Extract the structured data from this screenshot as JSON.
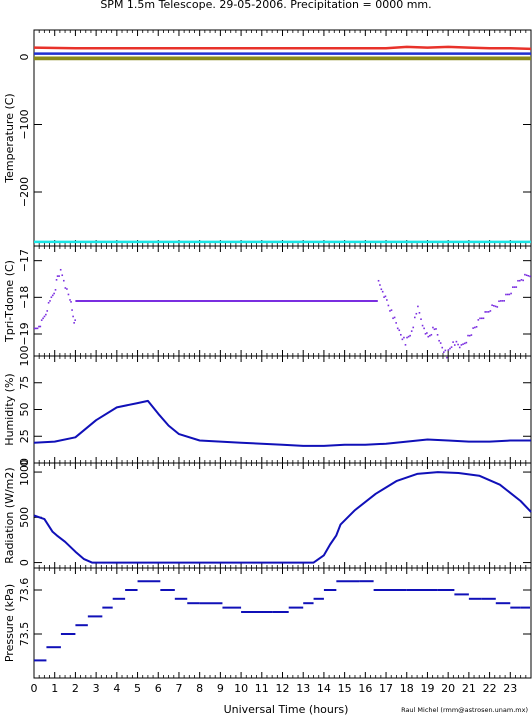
{
  "title": "SPM 1.5m Telescope. 29-05-2006. Precipitation = 0000",
  "title_suffix": " mm.",
  "credit": "Raul Michel (rmm@astrosen.unam.mx)",
  "colors": {
    "red": "#e8322a",
    "blue": "#1f2fd0",
    "olive": "#8a8a1a",
    "cyan": "#19e6e6",
    "purple": "#7a2ee0",
    "navy": "#1010b8"
  },
  "chart_data": {
    "type": "line",
    "xlabel": "Universal Time (hours)",
    "xlim": [
      0,
      24
    ],
    "xticks": [
      "0",
      "1",
      "2",
      "3",
      "4",
      "5",
      "6",
      "7",
      "8",
      "9",
      "10",
      "11",
      "12",
      "13",
      "14",
      "15",
      "16",
      "17",
      "18",
      "19",
      "20",
      "21",
      "22",
      "23"
    ],
    "panels": [
      {
        "id": "temperature",
        "ylabel": "Temperature (C)",
        "ylim": [
          -280,
          40
        ],
        "ytick_values": [
          0,
          -100,
          -200
        ],
        "ytick_labels": [
          "0",
          "−100",
          "−200"
        ],
        "series": [
          {
            "color": "red",
            "x": [
              0,
              2,
              6,
              10,
              14,
              16,
              17,
              18,
              19,
              20,
              21,
              22,
              23,
              24
            ],
            "y": [
              14,
              13,
              13,
              13,
              13,
              13,
              13,
              15,
              14,
              15,
              14,
              13,
              13,
              12
            ]
          },
          {
            "color": "blue",
            "x": [
              0,
              24
            ],
            "y": [
              5,
              5
            ]
          },
          {
            "color": "olive",
            "x": [
              0,
              24
            ],
            "y": [
              -1,
              -1
            ]
          },
          {
            "color": "olive",
            "x": [
              0,
              24
            ],
            "y": [
              -3,
              -3
            ]
          },
          {
            "color": "cyan",
            "x": [
              0,
              24
            ],
            "y": [
              -274,
              -274
            ]
          }
        ]
      },
      {
        "id": "tpri",
        "ylabel": "Tpri-Tdome (C)",
        "ylim": [
          -19.6,
          -16.6
        ],
        "ytick_values": [
          -17,
          -18,
          -19
        ],
        "ytick_labels": [
          "−17",
          "−18",
          "−19"
        ],
        "series": [
          {
            "color": "purple",
            "style": "points",
            "x": [
              0.0,
              0.2,
              0.4,
              0.6,
              0.8,
              1.0,
              1.1,
              1.25,
              1.4,
              1.55,
              1.7,
              1.8,
              1.9,
              2.0
            ],
            "y": [
              -18.9,
              -18.75,
              -18.6,
              -18.3,
              -18.0,
              -17.7,
              -17.4,
              -17.3,
              -17.5,
              -17.8,
              -18.0,
              -18.35,
              -18.6,
              -18.7
            ]
          },
          {
            "color": "purple",
            "style": "line",
            "x": [
              2.0,
              16.6
            ],
            "y": [
              -18.1,
              -18.1
            ]
          },
          {
            "color": "purple",
            "style": "points",
            "x": [
              16.6,
              16.8,
              17.0,
              17.3,
              17.6,
              17.9,
              18.2,
              18.5,
              18.8,
              19.0,
              19.3,
              19.6,
              19.9,
              20.2,
              20.6,
              21.0,
              21.5,
              22.0,
              22.5,
              23.0,
              23.5,
              24.0
            ],
            "y": [
              -17.6,
              -17.8,
              -18.1,
              -18.5,
              -18.9,
              -19.2,
              -18.9,
              -18.3,
              -18.8,
              -19.1,
              -18.8,
              -19.25,
              -19.55,
              -19.2,
              -19.35,
              -19.0,
              -18.6,
              -18.3,
              -18.1,
              -17.8,
              -17.5,
              -17.3
            ]
          }
        ]
      },
      {
        "id": "humidity",
        "ylabel": "Humidity (%)",
        "ylim": [
          0,
          100
        ],
        "ytick_values": [
          100,
          75,
          50,
          25,
          0
        ],
        "ytick_labels": [
          "100",
          "75",
          "50",
          "25",
          "0"
        ],
        "series": [
          {
            "color": "navy",
            "x": [
              0,
              1,
              2,
              3,
              4,
              5,
              5.5,
              6,
              6.5,
              7,
              8,
              9,
              10,
              11,
              12,
              13,
              14,
              15,
              16,
              17,
              18,
              19,
              20,
              21,
              22,
              23,
              24
            ],
            "y": [
              19,
              20,
              24,
              40,
              52,
              56,
              58,
              46,
              35,
              27,
              21,
              20,
              19,
              18,
              17,
              16,
              16,
              17,
              17,
              18,
              20,
              22,
              21,
              20,
              20,
              21,
              21
            ]
          }
        ]
      },
      {
        "id": "radiation",
        "ylabel": "Radiation (W/m2)",
        "ylim": [
          -60,
          1100
        ],
        "ytick_values": [
          0,
          500,
          1000
        ],
        "ytick_labels": [
          "0",
          "500",
          "1000"
        ],
        "series": [
          {
            "color": "navy",
            "x": [
              0,
              0.5,
              0.9,
              1.1,
              1.5,
              2.0,
              2.4,
              2.8,
              4,
              8,
              12,
              13.5,
              14.0,
              14.3,
              14.6,
              14.8,
              15.5,
              16.5,
              17.5,
              18.5,
              19.5,
              20.5,
              21.5,
              22.5,
              23.5,
              24.0
            ],
            "y": [
              520,
              480,
              340,
              300,
              230,
              120,
              40,
              0,
              0,
              0,
              0,
              0,
              80,
              200,
              300,
              420,
              580,
              760,
              900,
              980,
              1000,
              990,
              960,
              860,
              680,
              560
            ]
          }
        ]
      },
      {
        "id": "pressure",
        "ylabel": "Pressure (kPa)",
        "ylim": [
          73.4,
          73.65
        ],
        "ytick_values": [
          73.6,
          73.5
        ],
        "ytick_labels": [
          "73.6",
          "73.5"
        ],
        "series": [
          {
            "color": "navy",
            "style": "steps",
            "x": [
              0.0,
              0.6,
              1.3,
              2.0,
              2.6,
              3.3,
              3.8,
              4.4,
              5.0,
              6.1,
              6.8,
              7.4,
              8.0,
              9.1,
              10.0,
              11.5,
              12.3,
              13.0,
              13.5,
              14.0,
              14.6,
              15.7,
              16.4,
              18.0,
              19.5,
              20.3,
              21.0,
              21.6,
              22.3,
              23.0,
              23.5
            ],
            "y": [
              73.44,
              73.47,
              73.5,
              73.52,
              73.54,
              73.56,
              73.58,
              73.6,
              73.62,
              73.6,
              73.58,
              73.57,
              73.57,
              73.56,
              73.55,
              73.55,
              73.56,
              73.57,
              73.58,
              73.6,
              73.62,
              73.62,
              73.6,
              73.6,
              73.6,
              73.59,
              73.58,
              73.58,
              73.57,
              73.56,
              73.56
            ]
          }
        ]
      }
    ]
  }
}
